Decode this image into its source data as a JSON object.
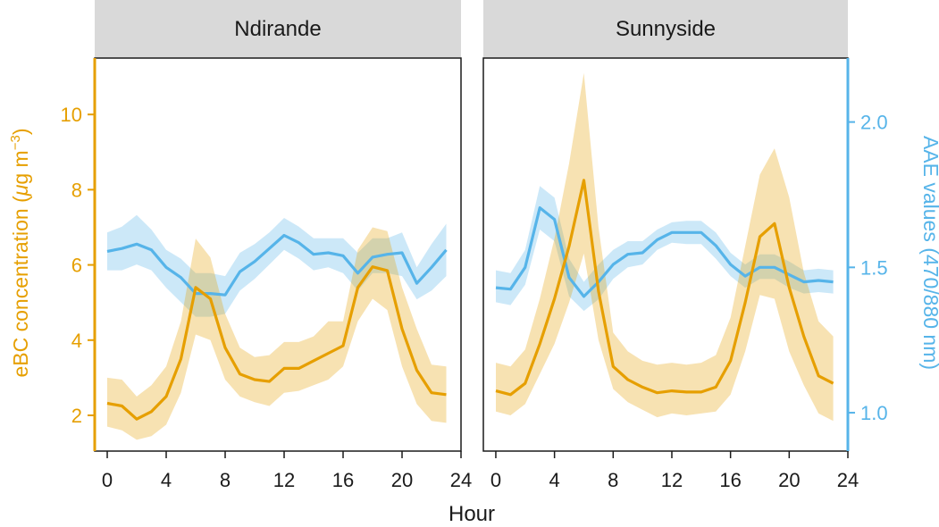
{
  "chart_data": {
    "type": "line",
    "facets": [
      "Ndirande",
      "Sunnyside"
    ],
    "xlabel": "Hour",
    "ylabel_left": {
      "pre": "eBC concentration (",
      "mu": "μ",
      "mid": "g m",
      "sup": "−3",
      "post": ")"
    },
    "ylabel_right": "AAE values (470/880 nm)",
    "x_ticks": [
      "0",
      "4",
      "8",
      "12",
      "16",
      "20",
      "24"
    ],
    "x_tick_values": [
      0,
      4,
      8,
      12,
      16,
      20,
      24
    ],
    "y_left_ticks": [
      "2",
      "4",
      "6",
      "8",
      "10"
    ],
    "y_left_tick_values": [
      2,
      4,
      6,
      8,
      10
    ],
    "y_right_ticks": [
      "1.0",
      "1.5",
      "2.0"
    ],
    "y_right_tick_values": [
      1.0,
      1.5,
      2.0
    ],
    "xlim": [
      -0.85,
      24
    ],
    "ylim_left": [
      1.05,
      11.5
    ],
    "ylim_right": [
      0.868,
      2.22
    ],
    "colors": {
      "ebc": "#E69F00",
      "aae": "#56B4E9",
      "strip": "#d9d9d9"
    },
    "panels": [
      {
        "name": "Ndirande",
        "hours": [
          0,
          1,
          2,
          3,
          4,
          5,
          6,
          7,
          8,
          9,
          10,
          11,
          12,
          13,
          14,
          15,
          16,
          17,
          18,
          19,
          20,
          21,
          22,
          23
        ],
        "ebc": {
          "mean": [
            2.32,
            2.25,
            1.9,
            2.1,
            2.5,
            3.5,
            5.4,
            5.1,
            3.8,
            3.1,
            2.95,
            2.9,
            3.25,
            3.25,
            3.45,
            3.65,
            3.85,
            5.4,
            5.95,
            5.85,
            4.3,
            3.2,
            2.6,
            2.55
          ],
          "lower": [
            1.7,
            1.6,
            1.35,
            1.45,
            1.75,
            2.6,
            4.15,
            4.0,
            2.95,
            2.5,
            2.35,
            2.25,
            2.6,
            2.65,
            2.8,
            2.95,
            3.3,
            4.5,
            5.1,
            4.8,
            3.3,
            2.3,
            1.85,
            1.8
          ],
          "upper": [
            3.0,
            2.95,
            2.5,
            2.8,
            3.3,
            4.5,
            6.7,
            6.2,
            4.7,
            3.8,
            3.55,
            3.6,
            3.95,
            3.95,
            4.1,
            4.5,
            4.5,
            6.4,
            7.0,
            6.9,
            5.4,
            4.3,
            3.35,
            3.3
          ]
        },
        "aae": {
          "mean": [
            1.555,
            1.565,
            1.58,
            1.56,
            1.5,
            1.465,
            1.41,
            1.41,
            1.405,
            1.485,
            1.52,
            1.565,
            1.61,
            1.585,
            1.545,
            1.55,
            1.54,
            1.48,
            1.535,
            1.545,
            1.55,
            1.445,
            1.5,
            1.56
          ],
          "lower": [
            1.49,
            1.49,
            1.51,
            1.49,
            1.43,
            1.38,
            1.33,
            1.33,
            1.34,
            1.42,
            1.46,
            1.51,
            1.56,
            1.53,
            1.49,
            1.5,
            1.48,
            1.42,
            1.48,
            1.48,
            1.47,
            1.39,
            1.42,
            1.47
          ],
          "upper": [
            1.62,
            1.64,
            1.68,
            1.63,
            1.56,
            1.53,
            1.48,
            1.48,
            1.47,
            1.55,
            1.58,
            1.62,
            1.67,
            1.64,
            1.6,
            1.6,
            1.6,
            1.55,
            1.6,
            1.6,
            1.62,
            1.5,
            1.58,
            1.65
          ]
        }
      },
      {
        "name": "Sunnyside",
        "hours": [
          0,
          1,
          2,
          3,
          4,
          5,
          6,
          7,
          8,
          9,
          10,
          11,
          12,
          13,
          14,
          15,
          16,
          17,
          18,
          19,
          20,
          21,
          22,
          23
        ],
        "ebc": {
          "mean": [
            2.65,
            2.55,
            2.85,
            3.9,
            5.1,
            6.5,
            8.25,
            5.3,
            3.3,
            2.95,
            2.75,
            2.6,
            2.65,
            2.62,
            2.62,
            2.75,
            3.45,
            5.0,
            6.75,
            7.1,
            5.4,
            4.1,
            3.05,
            2.85
          ],
          "lower": [
            2.1,
            2.0,
            2.3,
            3.1,
            3.9,
            5.0,
            6.3,
            4.0,
            2.7,
            2.35,
            2.15,
            1.95,
            2.05,
            2.0,
            2.05,
            2.1,
            2.55,
            3.7,
            5.2,
            5.1,
            3.7,
            2.8,
            2.05,
            1.85
          ],
          "upper": [
            3.4,
            3.3,
            3.75,
            5.1,
            6.7,
            8.7,
            11.1,
            7.0,
            4.2,
            3.7,
            3.45,
            3.35,
            3.4,
            3.35,
            3.4,
            3.6,
            4.6,
            6.5,
            8.4,
            9.1,
            7.8,
            5.8,
            4.5,
            4.1
          ]
        },
        "aae": {
          "mean": [
            1.43,
            1.425,
            1.5,
            1.705,
            1.665,
            1.465,
            1.4,
            1.45,
            1.51,
            1.545,
            1.55,
            1.595,
            1.62,
            1.62,
            1.62,
            1.575,
            1.51,
            1.47,
            1.5,
            1.5,
            1.475,
            1.45,
            1.455,
            1.45
          ],
          "lower": [
            1.38,
            1.37,
            1.44,
            1.63,
            1.59,
            1.4,
            1.35,
            1.39,
            1.46,
            1.5,
            1.51,
            1.56,
            1.585,
            1.58,
            1.58,
            1.53,
            1.47,
            1.43,
            1.46,
            1.46,
            1.43,
            1.41,
            1.415,
            1.41
          ],
          "upper": [
            1.49,
            1.48,
            1.56,
            1.78,
            1.74,
            1.53,
            1.45,
            1.51,
            1.56,
            1.59,
            1.59,
            1.63,
            1.655,
            1.66,
            1.66,
            1.62,
            1.55,
            1.51,
            1.545,
            1.545,
            1.52,
            1.49,
            1.495,
            1.49
          ]
        }
      }
    ]
  }
}
